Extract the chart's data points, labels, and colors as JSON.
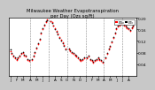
{
  "title": "Milwaukee Weather Evapotranspiration\nper Day (Ozs sq/ft)",
  "title_fontsize": 3.8,
  "background_color": "#c8c8c8",
  "plot_bg_color": "#ffffff",
  "ylim": [
    0.0,
    0.2
  ],
  "legend_label_red": "ETo",
  "legend_label_black": "ETc",
  "dot_size": 1.5,
  "vline_color": "#888888",
  "red_color": "#ff0000",
  "black_color": "#000000",
  "x_data": [
    0,
    1,
    2,
    3,
    4,
    5,
    6,
    7,
    8,
    9,
    10,
    11,
    12,
    14,
    15,
    16,
    17,
    18,
    19,
    20,
    21,
    22,
    23,
    24,
    26,
    27,
    28,
    29,
    30,
    31,
    32,
    33,
    34,
    35,
    36,
    38,
    39,
    40,
    41,
    42,
    43,
    44,
    45,
    46,
    47,
    48,
    50,
    51,
    52,
    53,
    54,
    55,
    56,
    57,
    58,
    59,
    60,
    62,
    63,
    64,
    65,
    66,
    67,
    68,
    69,
    70,
    71,
    72,
    74,
    75,
    76,
    77,
    78,
    79,
    80
  ],
  "red_y": [
    0.085,
    0.075,
    0.065,
    0.06,
    0.055,
    0.06,
    0.065,
    0.075,
    0.08,
    0.07,
    0.065,
    0.055,
    0.05,
    0.055,
    0.065,
    0.08,
    0.095,
    0.11,
    0.125,
    0.145,
    0.16,
    0.175,
    0.185,
    0.195,
    0.19,
    0.185,
    0.175,
    0.165,
    0.155,
    0.145,
    0.135,
    0.125,
    0.115,
    0.105,
    0.095,
    0.09,
    0.085,
    0.08,
    0.075,
    0.07,
    0.065,
    0.06,
    0.055,
    0.05,
    0.055,
    0.06,
    0.06,
    0.065,
    0.055,
    0.05,
    0.045,
    0.05,
    0.055,
    0.06,
    0.055,
    0.05,
    0.045,
    0.06,
    0.075,
    0.09,
    0.1,
    0.115,
    0.13,
    0.145,
    0.16,
    0.17,
    0.175,
    0.18,
    0.175,
    0.17,
    0.165,
    0.16,
    0.155,
    0.165,
    0.17
  ],
  "black_y": [
    0.09,
    0.08,
    0.07,
    0.063,
    0.058,
    0.063,
    0.068,
    0.078,
    0.083,
    0.073,
    0.068,
    0.058,
    0.053,
    0.058,
    0.068,
    0.083,
    0.098,
    0.113,
    0.128,
    0.148,
    0.163,
    0.178,
    0.188,
    0.192,
    0.188,
    0.182,
    0.172,
    0.162,
    0.152,
    0.142,
    0.132,
    0.122,
    0.112,
    0.102,
    0.092,
    0.093,
    0.088,
    0.083,
    0.078,
    0.073,
    0.068,
    0.063,
    0.058,
    0.053,
    0.058,
    0.063,
    0.063,
    0.068,
    0.058,
    0.053,
    0.048,
    0.053,
    0.058,
    0.063,
    0.058,
    0.053,
    0.048,
    0.063,
    0.078,
    0.093,
    0.103,
    0.118,
    0.133,
    0.148,
    0.163,
    0.173,
    0.178,
    0.183,
    0.178,
    0.173,
    0.168,
    0.163,
    0.158,
    0.168,
    0.173
  ],
  "vline_positions": [
    13,
    25,
    37,
    49,
    61,
    73
  ],
  "xlim": [
    -1,
    82
  ],
  "ytick_vals": [
    0.04,
    0.08,
    0.12,
    0.16,
    0.2
  ],
  "ytick_labels": [
    "0.04",
    "0.08",
    "0.12",
    "0.16",
    "0.20"
  ],
  "xtick_positions": [
    0,
    4,
    8,
    13,
    17,
    21,
    25,
    29,
    33,
    37,
    41,
    45,
    49,
    53,
    57,
    61,
    65,
    69,
    73,
    77
  ],
  "xtick_labels": [
    "J",
    "F",
    "M",
    "A",
    "M",
    "J",
    "J",
    "A",
    "S",
    "O",
    "N",
    "D",
    "J",
    "F",
    "M",
    "A",
    "M",
    "J",
    "J",
    "A"
  ],
  "ytick_fontsize": 3.2,
  "xtick_fontsize": 3.0
}
